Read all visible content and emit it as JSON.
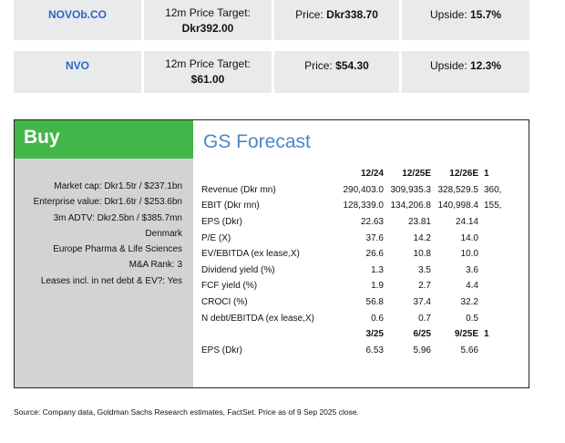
{
  "tickers": [
    {
      "symbol": "NOVOb.CO",
      "target_label": "12m Price Target:",
      "target_value": "Dkr392.00",
      "price_label": "Price:",
      "price_value": "Dkr338.70",
      "upside_label": "Upside:",
      "upside_value": "15.7%"
    },
    {
      "symbol": "NVO",
      "target_label": "12m Price Target:",
      "target_value": "$61.00",
      "price_label": "Price:",
      "price_value": "$54.30",
      "upside_label": "Upside:",
      "upside_value": "12.3%"
    }
  ],
  "rating": "Buy",
  "meta_lines": [
    "Market cap: Dkr1.5tr / $237.1bn",
    "Enterprise value: Dkr1.6tr / $253.6bn",
    "3m ADTV: Dkr2.5bn / $385.7mn",
    "Denmark",
    "Europe Pharma & Life Sciences",
    "M&A Rank: 3",
    "Leases incl. in net debt & EV?: Yes"
  ],
  "forecast": {
    "title": "GS Forecast",
    "annual_headers": [
      "12/24",
      "12/25E",
      "12/26E",
      "1"
    ],
    "annual_rows": [
      {
        "label": "Revenue (Dkr mn)",
        "values": [
          "290,403.0",
          "309,935.3",
          "328,529.5",
          "360,"
        ]
      },
      {
        "label": "EBIT (Dkr mn)",
        "values": [
          "128,339.0",
          "134,206.8",
          "140,998.4",
          "155,"
        ]
      },
      {
        "label": "EPS (Dkr)",
        "values": [
          "22.63",
          "23.81",
          "24.14",
          ""
        ]
      },
      {
        "label": "P/E (X)",
        "values": [
          "37.6",
          "14.2",
          "14.0",
          ""
        ]
      },
      {
        "label": "EV/EBITDA (ex lease,X)",
        "values": [
          "26.6",
          "10.8",
          "10.0",
          ""
        ]
      },
      {
        "label": "Dividend yield (%)",
        "values": [
          "1.3",
          "3.5",
          "3.6",
          ""
        ]
      },
      {
        "label": "FCF yield (%)",
        "values": [
          "1.9",
          "2.7",
          "4.4",
          ""
        ]
      },
      {
        "label": "CROCI (%)",
        "values": [
          "56.8",
          "37.4",
          "32.2",
          ""
        ]
      },
      {
        "label": "N debt/EBITDA (ex lease,X)",
        "values": [
          "0.6",
          "0.7",
          "0.5",
          ""
        ]
      }
    ],
    "quarterly_headers": [
      "3/25",
      "6/25",
      "9/25E",
      "1"
    ],
    "quarterly_rows": [
      {
        "label": "EPS (Dkr)",
        "values": [
          "6.53",
          "5.96",
          "5.66",
          ""
        ]
      }
    ]
  },
  "source_note": "Source: Company data, Goldman Sachs Research estimates, FactSet. Price as of 9 Sep 2025 close."
}
